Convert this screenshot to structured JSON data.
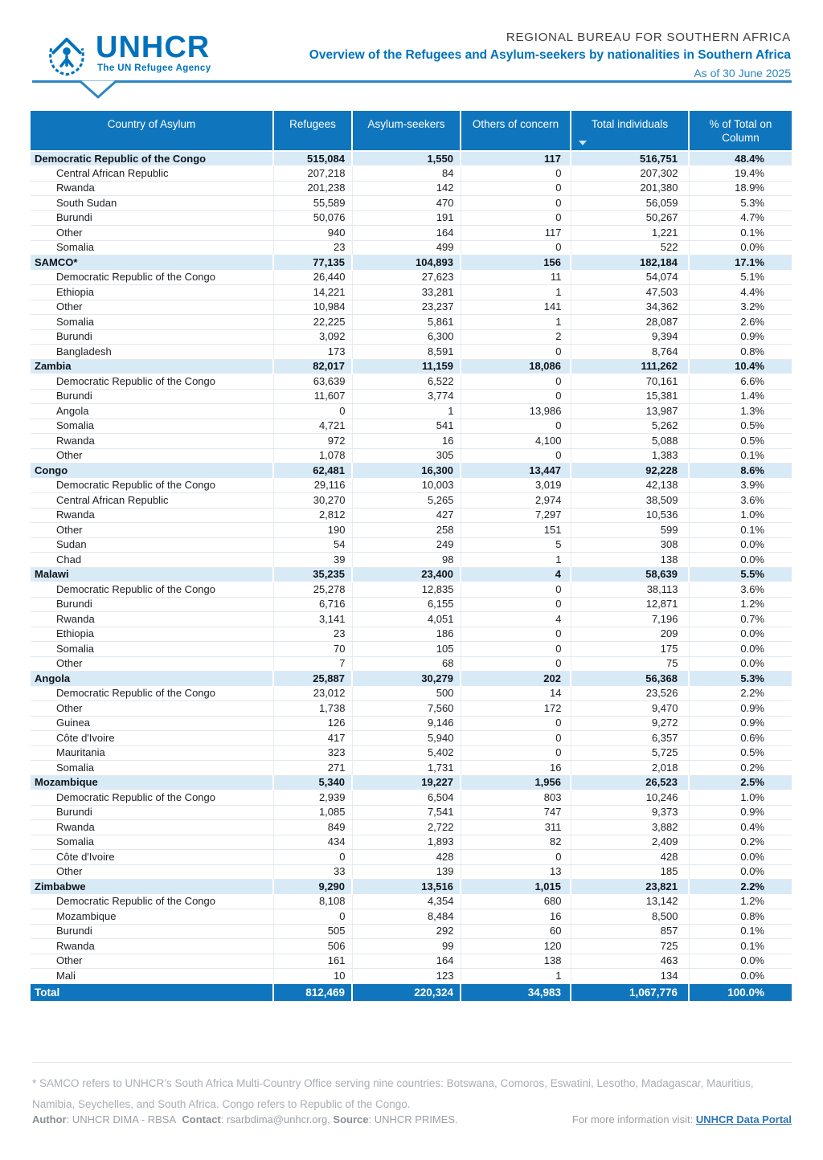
{
  "header": {
    "brand": "UNHCR",
    "tagline": "The UN Refugee Agency",
    "office": "REGIONAL BUREAU FOR SOUTHERN AFRICA",
    "title": "Overview of the Refugees and Asylum-seekers by nationalities in Southern Africa",
    "as_of": "As of 30 June 2025"
  },
  "colors": {
    "brand_blue": "#0072BC",
    "table_header_blue": "#0F76BD",
    "group_band_blue": "#D9EAF7",
    "rule_blue": "#2E86C1",
    "link_blue": "#2E75B6"
  },
  "table": {
    "columns": [
      "Country of Asylum",
      "Refugees",
      "Asylum-seekers",
      "Others of concern",
      "Total individuals",
      "% of Total on Column"
    ],
    "sort_icon_column": "Total individuals",
    "groups": [
      {
        "label": "Democratic Republic of the Congo",
        "values": [
          "515,084",
          "1,550",
          "117",
          "516,751",
          "48.4%"
        ],
        "rows": [
          {
            "label": "Central African Republic",
            "values": [
              "207,218",
              "84",
              "0",
              "207,302",
              "19.4%"
            ]
          },
          {
            "label": "Rwanda",
            "values": [
              "201,238",
              "142",
              "0",
              "201,380",
              "18.9%"
            ]
          },
          {
            "label": "South Sudan",
            "values": [
              "55,589",
              "470",
              "0",
              "56,059",
              "5.3%"
            ]
          },
          {
            "label": "Burundi",
            "values": [
              "50,076",
              "191",
              "0",
              "50,267",
              "4.7%"
            ]
          },
          {
            "label": "Other",
            "values": [
              "940",
              "164",
              "117",
              "1,221",
              "0.1%"
            ]
          },
          {
            "label": "Somalia",
            "values": [
              "23",
              "499",
              "0",
              "522",
              "0.0%"
            ]
          }
        ]
      },
      {
        "label": "SAMCO*",
        "values": [
          "77,135",
          "104,893",
          "156",
          "182,184",
          "17.1%"
        ],
        "rows": [
          {
            "label": "Democratic Republic of the Congo",
            "values": [
              "26,440",
              "27,623",
              "11",
              "54,074",
              "5.1%"
            ]
          },
          {
            "label": "Ethiopia",
            "values": [
              "14,221",
              "33,281",
              "1",
              "47,503",
              "4.4%"
            ]
          },
          {
            "label": "Other",
            "values": [
              "10,984",
              "23,237",
              "141",
              "34,362",
              "3.2%"
            ]
          },
          {
            "label": "Somalia",
            "values": [
              "22,225",
              "5,861",
              "1",
              "28,087",
              "2.6%"
            ]
          },
          {
            "label": "Burundi",
            "values": [
              "3,092",
              "6,300",
              "2",
              "9,394",
              "0.9%"
            ]
          },
          {
            "label": "Bangladesh",
            "values": [
              "173",
              "8,591",
              "0",
              "8,764",
              "0.8%"
            ]
          }
        ]
      },
      {
        "label": "Zambia",
        "values": [
          "82,017",
          "11,159",
          "18,086",
          "111,262",
          "10.4%"
        ],
        "rows": [
          {
            "label": "Democratic Republic of the Congo",
            "values": [
              "63,639",
              "6,522",
              "0",
              "70,161",
              "6.6%"
            ]
          },
          {
            "label": "Burundi",
            "values": [
              "11,607",
              "3,774",
              "0",
              "15,381",
              "1.4%"
            ]
          },
          {
            "label": "Angola",
            "values": [
              "0",
              "1",
              "13,986",
              "13,987",
              "1.3%"
            ]
          },
          {
            "label": "Somalia",
            "values": [
              "4,721",
              "541",
              "0",
              "5,262",
              "0.5%"
            ]
          },
          {
            "label": "Rwanda",
            "values": [
              "972",
              "16",
              "4,100",
              "5,088",
              "0.5%"
            ]
          },
          {
            "label": "Other",
            "values": [
              "1,078",
              "305",
              "0",
              "1,383",
              "0.1%"
            ]
          }
        ]
      },
      {
        "label": "Congo",
        "values": [
          "62,481",
          "16,300",
          "13,447",
          "92,228",
          "8.6%"
        ],
        "rows": [
          {
            "label": "Democratic Republic of the Congo",
            "values": [
              "29,116",
              "10,003",
              "3,019",
              "42,138",
              "3.9%"
            ]
          },
          {
            "label": "Central African Republic",
            "values": [
              "30,270",
              "5,265",
              "2,974",
              "38,509",
              "3.6%"
            ]
          },
          {
            "label": "Rwanda",
            "values": [
              "2,812",
              "427",
              "7,297",
              "10,536",
              "1.0%"
            ]
          },
          {
            "label": "Other",
            "values": [
              "190",
              "258",
              "151",
              "599",
              "0.1%"
            ]
          },
          {
            "label": "Sudan",
            "values": [
              "54",
              "249",
              "5",
              "308",
              "0.0%"
            ]
          },
          {
            "label": "Chad",
            "values": [
              "39",
              "98",
              "1",
              "138",
              "0.0%"
            ]
          }
        ]
      },
      {
        "label": "Malawi",
        "values": [
          "35,235",
          "23,400",
          "4",
          "58,639",
          "5.5%"
        ],
        "rows": [
          {
            "label": "Democratic Republic of the Congo",
            "values": [
              "25,278",
              "12,835",
              "0",
              "38,113",
              "3.6%"
            ]
          },
          {
            "label": "Burundi",
            "values": [
              "6,716",
              "6,155",
              "0",
              "12,871",
              "1.2%"
            ]
          },
          {
            "label": "Rwanda",
            "values": [
              "3,141",
              "4,051",
              "4",
              "7,196",
              "0.7%"
            ]
          },
          {
            "label": "Ethiopia",
            "values": [
              "23",
              "186",
              "0",
              "209",
              "0.0%"
            ]
          },
          {
            "label": "Somalia",
            "values": [
              "70",
              "105",
              "0",
              "175",
              "0.0%"
            ]
          },
          {
            "label": "Other",
            "values": [
              "7",
              "68",
              "0",
              "75",
              "0.0%"
            ]
          }
        ]
      },
      {
        "label": "Angola",
        "values": [
          "25,887",
          "30,279",
          "202",
          "56,368",
          "5.3%"
        ],
        "rows": [
          {
            "label": "Democratic Republic of the Congo",
            "values": [
              "23,012",
              "500",
              "14",
              "23,526",
              "2.2%"
            ]
          },
          {
            "label": "Other",
            "values": [
              "1,738",
              "7,560",
              "172",
              "9,470",
              "0.9%"
            ]
          },
          {
            "label": "Guinea",
            "values": [
              "126",
              "9,146",
              "0",
              "9,272",
              "0.9%"
            ]
          },
          {
            "label": "Côte d'Ivoire",
            "values": [
              "417",
              "5,940",
              "0",
              "6,357",
              "0.6%"
            ]
          },
          {
            "label": "Mauritania",
            "values": [
              "323",
              "5,402",
              "0",
              "5,725",
              "0.5%"
            ]
          },
          {
            "label": "Somalia",
            "values": [
              "271",
              "1,731",
              "16",
              "2,018",
              "0.2%"
            ]
          }
        ]
      },
      {
        "label": "Mozambique",
        "values": [
          "5,340",
          "19,227",
          "1,956",
          "26,523",
          "2.5%"
        ],
        "rows": [
          {
            "label": "Democratic Republic of the Congo",
            "values": [
              "2,939",
              "6,504",
              "803",
              "10,246",
              "1.0%"
            ]
          },
          {
            "label": "Burundi",
            "values": [
              "1,085",
              "7,541",
              "747",
              "9,373",
              "0.9%"
            ]
          },
          {
            "label": "Rwanda",
            "values": [
              "849",
              "2,722",
              "311",
              "3,882",
              "0.4%"
            ]
          },
          {
            "label": "Somalia",
            "values": [
              "434",
              "1,893",
              "82",
              "2,409",
              "0.2%"
            ]
          },
          {
            "label": "Côte d'Ivoire",
            "values": [
              "0",
              "428",
              "0",
              "428",
              "0.0%"
            ]
          },
          {
            "label": "Other",
            "values": [
              "33",
              "139",
              "13",
              "185",
              "0.0%"
            ]
          }
        ]
      },
      {
        "label": "Zimbabwe",
        "values": [
          "9,290",
          "13,516",
          "1,015",
          "23,821",
          "2.2%"
        ],
        "rows": [
          {
            "label": "Democratic Republic of the Congo",
            "values": [
              "8,108",
              "4,354",
              "680",
              "13,142",
              "1.2%"
            ]
          },
          {
            "label": "Mozambique",
            "values": [
              "0",
              "8,484",
              "16",
              "8,500",
              "0.8%"
            ]
          },
          {
            "label": "Burundi",
            "values": [
              "505",
              "292",
              "60",
              "857",
              "0.1%"
            ]
          },
          {
            "label": "Rwanda",
            "values": [
              "506",
              "99",
              "120",
              "725",
              "0.1%"
            ]
          },
          {
            "label": "Other",
            "values": [
              "161",
              "164",
              "138",
              "463",
              "0.0%"
            ]
          },
          {
            "label": "Mali",
            "values": [
              "10",
              "123",
              "1",
              "134",
              "0.0%"
            ]
          }
        ]
      }
    ],
    "total": {
      "label": "Total",
      "values": [
        "812,469",
        "220,324",
        "34,983",
        "1,067,776",
        "100.0%"
      ]
    }
  },
  "footnote": "* SAMCO refers to UNHCR’s South Africa Multi-Country Office serving nine countries: Botswana, Comoros, Eswatini, Lesotho, Madagascar, Mauritius, Namibia, Seychelles, and South Africa. Congo refers to Republic of the Congo.",
  "footer": {
    "author_label": "Author",
    "author": ": UNHCR DIMA - RBSA",
    "contact_label": "Contact",
    "contact": ": rsarbdima@unhcr.org,",
    "source_label": "Source",
    "source": ": UNHCR PRIMES.",
    "more_info": "For more information visit:",
    "link": "UNHCR Data Portal"
  }
}
